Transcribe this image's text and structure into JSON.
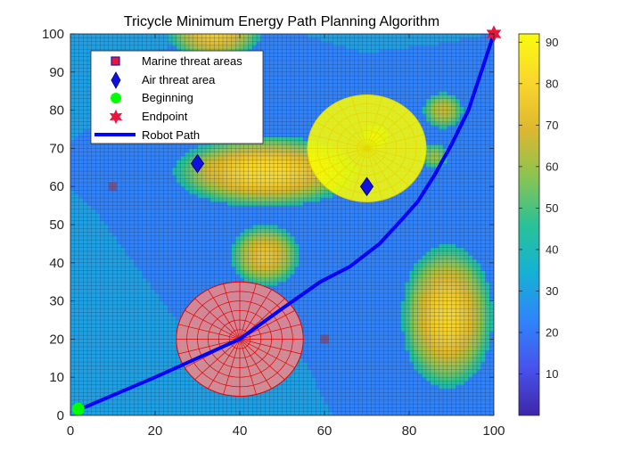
{
  "chart_data": {
    "type": "surface",
    "title": "Tricycle Minimum Energy Path Planning Algorithm",
    "xlabel": "",
    "ylabel": "",
    "xlim": [
      0,
      100
    ],
    "ylim": [
      0,
      100
    ],
    "xticks": [
      "0",
      "20",
      "40",
      "60",
      "80",
      "100"
    ],
    "yticks": [
      "0",
      "10",
      "20",
      "30",
      "40",
      "50",
      "60",
      "70",
      "80",
      "90",
      "100"
    ],
    "grid": true,
    "background_level": 30,
    "region_levels": [
      {
        "level": 22,
        "polygon": [
          [
            0,
            72
          ],
          [
            8,
            78
          ],
          [
            18,
            95
          ],
          [
            35,
            100
          ],
          [
            55,
            100
          ],
          [
            70,
            95
          ],
          [
            90,
            98
          ],
          [
            100,
            100
          ],
          [
            100,
            0
          ],
          [
            62,
            0
          ],
          [
            55,
            15
          ],
          [
            48,
            20
          ],
          [
            38,
            22
          ],
          [
            25,
            25
          ],
          [
            15,
            40
          ],
          [
            5,
            55
          ],
          [
            0,
            60
          ]
        ]
      }
    ],
    "peaks": [
      {
        "x": 46,
        "y": 64,
        "rx": 16,
        "ry": 7,
        "peak": 82
      },
      {
        "x": 34,
        "y": 64,
        "rx": 5,
        "ry": 5,
        "peak": 70
      },
      {
        "x": 34,
        "y": 100,
        "rx": 8,
        "ry": 5,
        "peak": 76
      },
      {
        "x": 46,
        "y": 42,
        "rx": 6,
        "ry": 6,
        "peak": 74
      },
      {
        "x": 89,
        "y": 26,
        "rx": 8,
        "ry": 14,
        "peak": 80
      },
      {
        "x": 88,
        "y": 80,
        "rx": 3.5,
        "ry": 3.5,
        "peak": 66
      },
      {
        "x": 86,
        "y": 68,
        "rx": 2.5,
        "ry": 2.5,
        "peak": 60
      },
      {
        "x": 72,
        "y": 73,
        "rx": 2.5,
        "ry": 2.5,
        "peak": 60
      }
    ],
    "threat_domes": [
      {
        "name": "Air threat area",
        "x": 70,
        "y": 70,
        "r": 14,
        "color": "#ffff00",
        "edge": "#e6d800"
      },
      {
        "name": "Marine threat area",
        "x": 40,
        "y": 20,
        "r": 15,
        "color": "#f08a8a",
        "edge": "#e00000"
      }
    ],
    "series": [
      {
        "name": "Marine threat areas",
        "marker": "square",
        "color": "#a02828",
        "points": [
          [
            10,
            60
          ],
          [
            60,
            20
          ]
        ]
      },
      {
        "name": "Air threat area",
        "marker": "diamond",
        "color": "#1010e0",
        "points": [
          [
            30,
            66
          ],
          [
            70,
            60
          ]
        ]
      },
      {
        "name": "Beginning",
        "marker": "circle",
        "color": "#00ff00",
        "points": [
          [
            1,
            1
          ]
        ]
      },
      {
        "name": "Endpoint",
        "marker": "hexagram",
        "color": "#e8163c",
        "points": [
          [
            100,
            100
          ]
        ]
      },
      {
        "name": "Robot Path",
        "marker": "line",
        "color": "#0000ff",
        "points": [
          [
            1,
            1
          ],
          [
            20,
            10
          ],
          [
            40,
            20
          ],
          [
            50,
            28
          ],
          [
            59,
            35
          ],
          [
            66,
            39
          ],
          [
            73,
            45
          ],
          [
            78,
            51
          ],
          [
            82,
            56
          ],
          [
            86,
            63
          ],
          [
            90,
            71
          ],
          [
            94,
            80
          ],
          [
            97,
            90
          ],
          [
            100,
            100
          ]
        ]
      }
    ],
    "colorbar": {
      "min": 0,
      "max": 92,
      "ticks": [
        10,
        20,
        30,
        40,
        50,
        60,
        70,
        80,
        90
      ],
      "colormap": "parula"
    },
    "legend_position": "top-left"
  }
}
